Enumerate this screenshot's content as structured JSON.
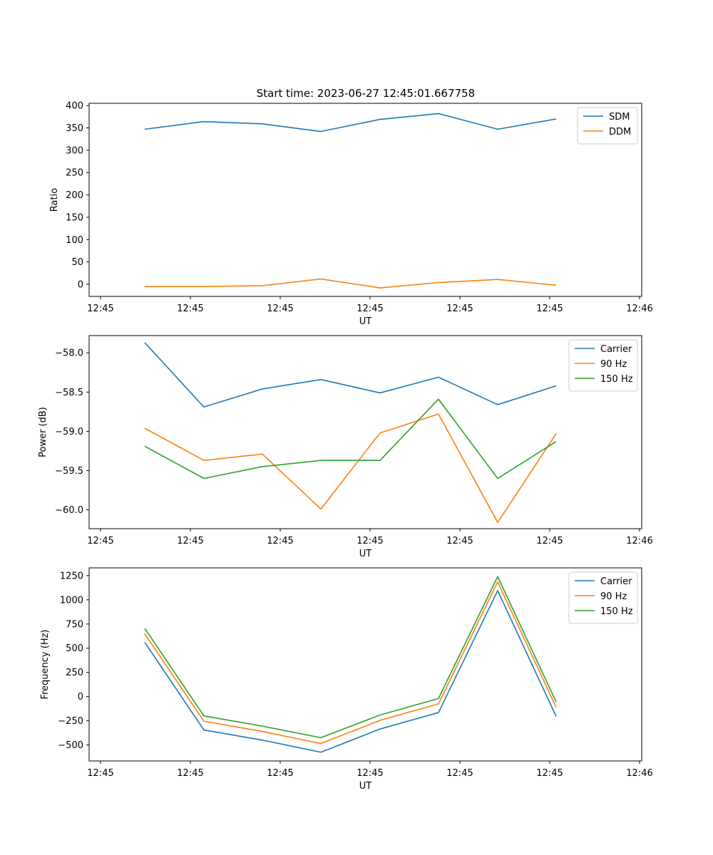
{
  "figure_title": "Start time: 2023-06-27 12:45:01.667758",
  "colors": {
    "blue": "#1f77b4",
    "orange": "#ff7f0e",
    "green": "#2ca02c"
  },
  "chart_data": [
    {
      "type": "line",
      "xlabel": "UT",
      "ylabel": "Ratio",
      "x_tick_labels": [
        "12:45",
        "12:45",
        "12:45",
        "12:45",
        "12:45",
        "12:45",
        "12:46"
      ],
      "y_ticks": [
        0,
        50,
        100,
        150,
        200,
        250,
        300,
        350,
        400
      ],
      "y_tick_labels": [
        "0",
        "50",
        "100",
        "150",
        "200",
        "250",
        "300",
        "350",
        "400"
      ],
      "ylim": [
        -27,
        405
      ],
      "legend_position": "upper right",
      "series": [
        {
          "name": "SDM",
          "color": "#1f77b4",
          "values": [
            347,
            364,
            359,
            342,
            369,
            382,
            347,
            370
          ]
        },
        {
          "name": "DDM",
          "color": "#ff7f0e",
          "values": [
            -5,
            -5,
            -3,
            12,
            -8,
            4,
            11,
            -2
          ]
        }
      ]
    },
    {
      "type": "line",
      "xlabel": "UT",
      "ylabel": "Power (dB)",
      "x_tick_labels": [
        "12:45",
        "12:45",
        "12:45",
        "12:45",
        "12:45",
        "12:45",
        "12:46"
      ],
      "y_ticks": [
        -58.0,
        -58.5,
        -59.0,
        -59.5,
        -60.0
      ],
      "y_tick_labels": [
        "−58.0",
        "−58.5",
        "−59.0",
        "−59.5",
        "−60.0"
      ],
      "ylim": [
        -60.24,
        -57.78
      ],
      "legend_position": "upper right",
      "series": [
        {
          "name": "Carrier",
          "color": "#1f77b4",
          "values": [
            -57.87,
            -58.69,
            -58.46,
            -58.34,
            -58.51,
            -58.31,
            -58.66,
            -58.42
          ]
        },
        {
          "name": "90 Hz",
          "color": "#ff7f0e",
          "values": [
            -58.96,
            -59.37,
            -59.29,
            -59.99,
            -59.02,
            -58.78,
            -60.16,
            -59.03
          ]
        },
        {
          "name": "150 Hz",
          "color": "#2ca02c",
          "values": [
            -59.19,
            -59.6,
            -59.45,
            -59.37,
            -59.37,
            -58.59,
            -59.6,
            -59.13
          ]
        }
      ]
    },
    {
      "type": "line",
      "xlabel": "UT",
      "ylabel": "Frequency (Hz)",
      "x_tick_labels": [
        "12:45",
        "12:45",
        "12:45",
        "12:45",
        "12:45",
        "12:45",
        "12:46"
      ],
      "y_ticks": [
        1250,
        1000,
        750,
        500,
        250,
        0,
        -250,
        -500
      ],
      "y_tick_labels": [
        "1250",
        "1000",
        "750",
        "500",
        "250",
        "0",
        "−250",
        "−500"
      ],
      "ylim": [
        -665,
        1330
      ],
      "legend_position": "upper right",
      "series": [
        {
          "name": "Carrier",
          "color": "#1f77b4",
          "values": [
            560,
            -345,
            -450,
            -575,
            -335,
            -165,
            1095,
            -205
          ]
        },
        {
          "name": "90 Hz",
          "color": "#ff7f0e",
          "values": [
            650,
            -255,
            -360,
            -485,
            -245,
            -75,
            1185,
            -110
          ]
        },
        {
          "name": "150 Hz",
          "color": "#2ca02c",
          "values": [
            705,
            -200,
            -305,
            -425,
            -190,
            -20,
            1240,
            -55
          ]
        }
      ]
    }
  ]
}
